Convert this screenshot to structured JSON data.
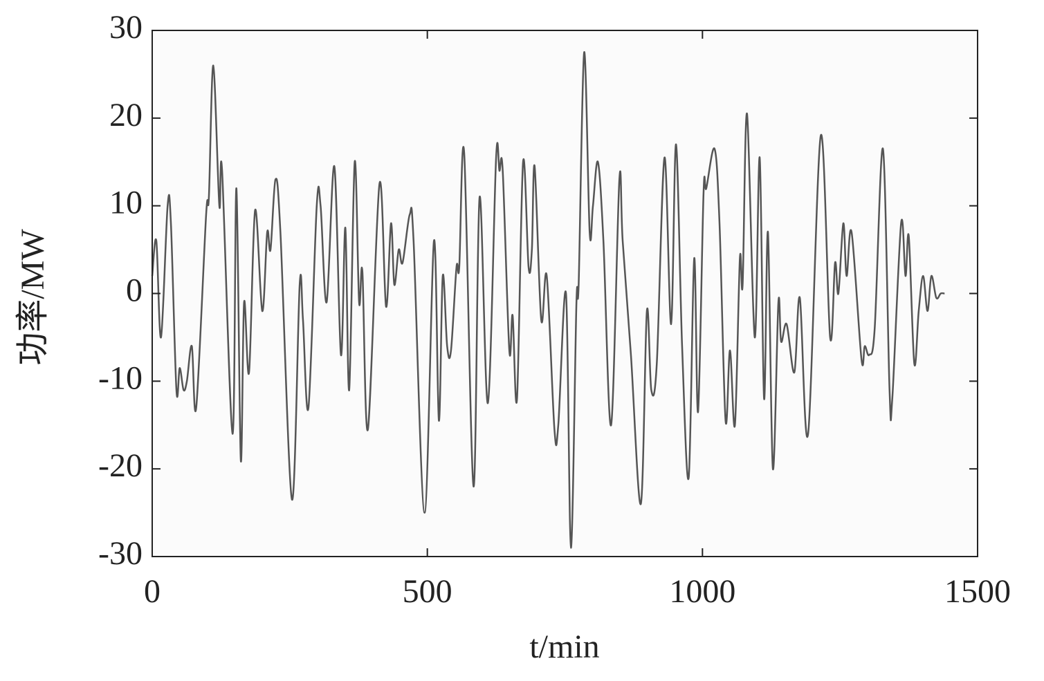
{
  "chart_data": {
    "type": "line",
    "x_label": "t/min",
    "y_label": "功率/MW",
    "x": [
      0,
      7.5,
      16,
      28,
      34,
      44,
      50,
      57,
      63,
      72,
      80,
      98,
      103,
      111,
      122,
      127,
      146,
      153,
      161,
      167,
      176,
      187,
      200,
      209,
      215,
      224,
      233,
      254,
      268,
      274,
      284,
      299,
      306,
      317,
      331,
      343,
      351,
      358,
      368,
      376,
      382,
      392,
      413,
      425,
      434,
      440,
      448,
      455,
      468,
      475,
      495,
      512,
      521,
      528,
      536,
      543,
      553,
      558,
      567,
      584,
      595,
      610,
      625,
      631,
      637,
      649,
      655,
      663,
      674,
      684,
      690,
      695,
      707,
      717,
      731,
      738,
      752,
      761,
      771,
      775,
      785,
      795,
      801,
      810,
      820,
      834,
      849,
      855,
      870,
      888,
      899,
      907,
      917,
      931,
      943,
      952,
      963,
      975,
      985,
      992,
      1002,
      1007,
      1022,
      1031,
      1042,
      1050,
      1059,
      1068,
      1073,
      1081,
      1095,
      1104,
      1112,
      1119,
      1128,
      1138,
      1143,
      1153,
      1167,
      1177,
      1192,
      1215,
      1232,
      1241,
      1247,
      1256,
      1262,
      1271,
      1289,
      1295,
      1303,
      1313,
      1328,
      1340,
      1345,
      1361,
      1369,
      1375,
      1385,
      1393,
      1401,
      1409,
      1416,
      1425,
      1433,
      1440
    ],
    "series": [
      {
        "name": "功率",
        "color": "#555555",
        "values": [
          2,
          6,
          -5,
          10,
          8,
          -11,
          -8.5,
          -11,
          -10,
          -6,
          -13,
          9,
          11,
          26,
          10,
          14,
          -16,
          12,
          -19,
          -1,
          -9,
          9.5,
          -2,
          7,
          5,
          13,
          7,
          -23.5,
          1,
          -3,
          -13,
          10,
          10,
          -1,
          14.5,
          -7,
          7.5,
          -11,
          15,
          -1,
          2.5,
          -15.5,
          12.5,
          -1.5,
          8,
          1,
          5,
          3.5,
          9,
          6,
          -25,
          6,
          -14.5,
          2,
          -6,
          -6.5,
          3,
          3,
          16,
          -22,
          11,
          -12.5,
          15.5,
          14,
          14,
          -6.5,
          -2.5,
          -12,
          15,
          3,
          5,
          14.5,
          -3,
          2,
          -15.5,
          -15,
          0,
          -29,
          -1,
          1,
          27.5,
          7,
          10,
          15,
          6,
          -15,
          13,
          6,
          -7,
          -24,
          -2,
          -11,
          -8,
          15.5,
          -3.5,
          17,
          -6,
          -21,
          4,
          -13.5,
          11.5,
          12,
          16.5,
          8,
          -14.5,
          -6.5,
          -15,
          4,
          1,
          20.5,
          -5,
          15.5,
          -12,
          7,
          -20,
          -1,
          -5.5,
          -3.5,
          -9,
          -0.5,
          -16,
          18,
          -5,
          3.5,
          0,
          8,
          2,
          7,
          -7.5,
          -6,
          -7,
          -4,
          16.5,
          -11,
          -12,
          8,
          2,
          6.5,
          -8,
          -2,
          2,
          -2,
          2,
          -0.5,
          0,
          0
        ]
      }
    ],
    "xlim": [
      0,
      1500
    ],
    "xticks": [
      0,
      500,
      1000,
      1500
    ],
    "ylim": [
      -30,
      30
    ],
    "yticks": [
      -30,
      -20,
      -10,
      0,
      10,
      20,
      30
    ],
    "grid": false
  }
}
